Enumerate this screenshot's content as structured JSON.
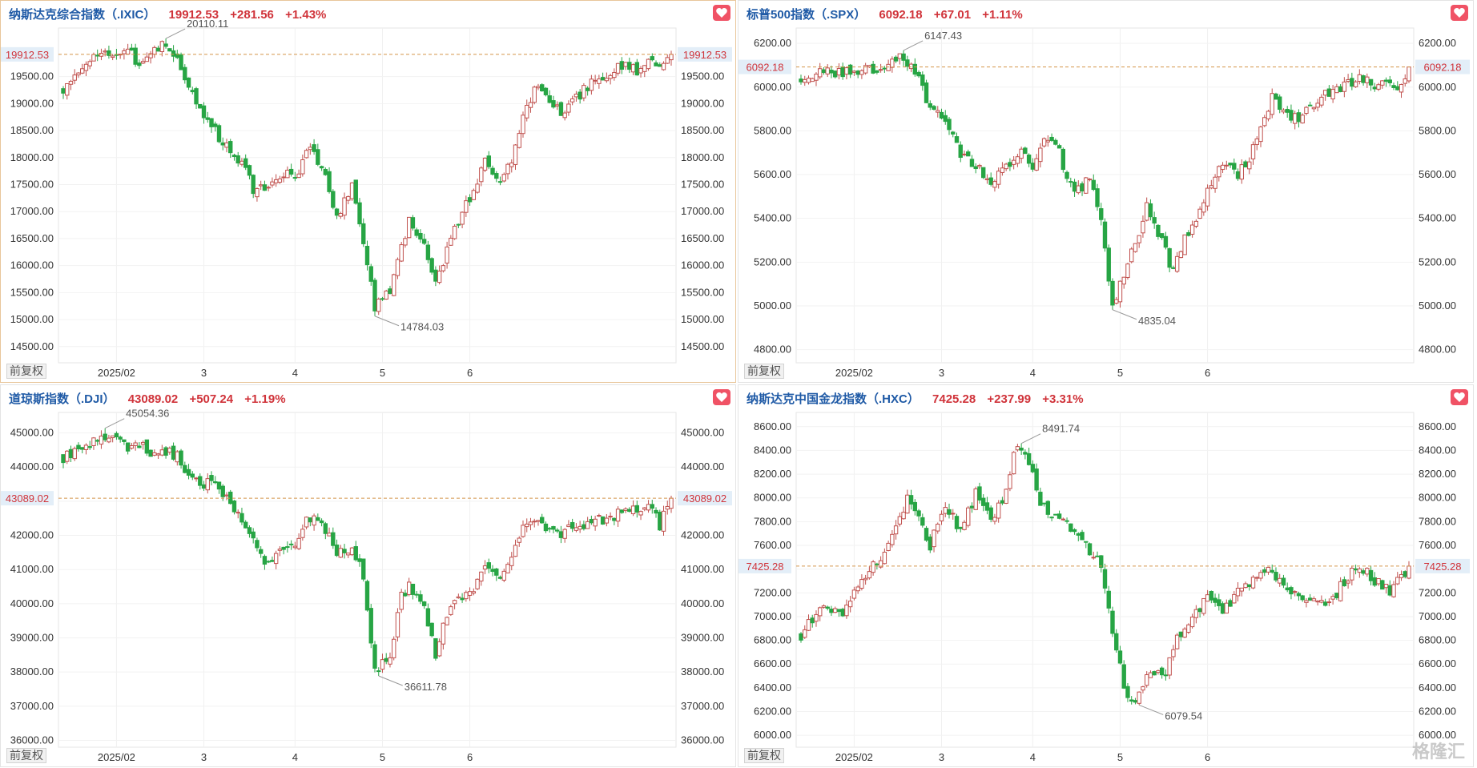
{
  "chart_data": [
    {
      "type": "candlestick",
      "id": "p0",
      "name": "纳斯达克综合指数（.IXIC）",
      "price": "19912.53",
      "change": "+281.56",
      "pct": "+1.43%",
      "current": 19912.53,
      "ylim": [
        14200,
        20400
      ],
      "ticks": [
        14500,
        15000,
        15500,
        16000,
        16500,
        17000,
        17500,
        18000,
        18500,
        19000,
        19500
      ],
      "high_label": "20110.11",
      "low_label": "14784.03",
      "waypoints": [
        [
          0,
          19300
        ],
        [
          6,
          19800
        ],
        [
          13,
          19900
        ],
        [
          17,
          20000
        ],
        [
          20,
          19700
        ],
        [
          23,
          20000
        ],
        [
          26,
          20110
        ],
        [
          30,
          19900
        ],
        [
          33,
          19300
        ],
        [
          38,
          18700
        ],
        [
          42,
          18300
        ],
        [
          47,
          17900
        ],
        [
          50,
          17400
        ],
        [
          53,
          17500
        ],
        [
          58,
          17700
        ],
        [
          61,
          17600
        ],
        [
          64,
          18200
        ],
        [
          68,
          17900
        ],
        [
          72,
          16900
        ],
        [
          76,
          17500
        ],
        [
          79,
          16400
        ],
        [
          82,
          15200
        ],
        [
          86,
          15500
        ],
        [
          89,
          16300
        ],
        [
          91,
          16800
        ],
        [
          95,
          16400
        ],
        [
          98,
          15700
        ],
        [
          101,
          16300
        ],
        [
          105,
          17000
        ],
        [
          108,
          17300
        ],
        [
          111,
          17900
        ],
        [
          115,
          17600
        ],
        [
          118,
          17900
        ],
        [
          121,
          18700
        ],
        [
          124,
          19300
        ],
        [
          127,
          19100
        ],
        [
          131,
          18800
        ],
        [
          135,
          19100
        ],
        [
          139,
          19400
        ],
        [
          143,
          19500
        ],
        [
          147,
          19700
        ],
        [
          151,
          19600
        ],
        [
          154,
          19800
        ],
        [
          157,
          19700
        ],
        [
          160,
          19912
        ]
      ]
    },
    {
      "type": "candlestick",
      "id": "p1",
      "name": "标普500指数（.SPX）",
      "price": "6092.18",
      "change": "+67.01",
      "pct": "+1.11%",
      "current": 6092.18,
      "ylim": [
        4740,
        6270
      ],
      "ticks": [
        4800,
        5000,
        5200,
        5400,
        5600,
        5800,
        6000,
        6200
      ],
      "high_label": "6147.43",
      "low_label": "4835.04",
      "waypoints": [
        [
          0,
          6050
        ],
        [
          6,
          6080
        ],
        [
          13,
          6060
        ],
        [
          17,
          6100
        ],
        [
          20,
          6050
        ],
        [
          23,
          6120
        ],
        [
          26,
          6147
        ],
        [
          30,
          6080
        ],
        [
          33,
          5950
        ],
        [
          38,
          5830
        ],
        [
          42,
          5700
        ],
        [
          47,
          5620
        ],
        [
          50,
          5580
        ],
        [
          53,
          5620
        ],
        [
          58,
          5690
        ],
        [
          61,
          5650
        ],
        [
          64,
          5770
        ],
        [
          68,
          5700
        ],
        [
          72,
          5500
        ],
        [
          76,
          5600
        ],
        [
          79,
          5400
        ],
        [
          82,
          5000
        ],
        [
          86,
          5200
        ],
        [
          89,
          5300
        ],
        [
          91,
          5450
        ],
        [
          95,
          5300
        ],
        [
          98,
          5150
        ],
        [
          101,
          5300
        ],
        [
          105,
          5450
        ],
        [
          108,
          5550
        ],
        [
          111,
          5650
        ],
        [
          115,
          5600
        ],
        [
          118,
          5680
        ],
        [
          121,
          5800
        ],
        [
          124,
          5950
        ],
        [
          127,
          5900
        ],
        [
          131,
          5850
        ],
        [
          135,
          5930
        ],
        [
          139,
          5980
        ],
        [
          143,
          6000
        ],
        [
          147,
          6040
        ],
        [
          151,
          6010
        ],
        [
          154,
          6050
        ],
        [
          157,
          6000
        ],
        [
          160,
          6092
        ]
      ]
    },
    {
      "type": "candlestick",
      "id": "p2",
      "name": "道琼斯指数（.DJI）",
      "price": "43089.02",
      "change": "+507.24",
      "pct": "+1.19%",
      "current": 43089.02,
      "ylim": [
        35800,
        45600
      ],
      "ticks": [
        36000,
        37000,
        38000,
        39000,
        40000,
        41000,
        42000,
        43000,
        44000,
        45000
      ],
      "high_label": "45054.36",
      "low_label": "36611.78",
      "waypoints": [
        [
          0,
          44300
        ],
        [
          6,
          44700
        ],
        [
          13,
          44900
        ],
        [
          17,
          44500
        ],
        [
          20,
          44700
        ],
        [
          23,
          44400
        ],
        [
          26,
          44500
        ],
        [
          30,
          44300
        ],
        [
          33,
          43700
        ],
        [
          38,
          43500
        ],
        [
          42,
          43300
        ],
        [
          47,
          42500
        ],
        [
          50,
          41800
        ],
        [
          53,
          41200
        ],
        [
          58,
          41500
        ],
        [
          61,
          41700
        ],
        [
          64,
          42500
        ],
        [
          68,
          42300
        ],
        [
          72,
          41500
        ],
        [
          76,
          41600
        ],
        [
          79,
          40800
        ],
        [
          82,
          38000
        ],
        [
          86,
          38500
        ],
        [
          89,
          40200
        ],
        [
          91,
          40500
        ],
        [
          95,
          39800
        ],
        [
          98,
          38500
        ],
        [
          101,
          39700
        ],
        [
          105,
          40200
        ],
        [
          108,
          40500
        ],
        [
          111,
          41000
        ],
        [
          115,
          40900
        ],
        [
          118,
          41300
        ],
        [
          121,
          42200
        ],
        [
          124,
          42500
        ],
        [
          127,
          42300
        ],
        [
          131,
          42000
        ],
        [
          135,
          42300
        ],
        [
          139,
          42400
        ],
        [
          143,
          42500
        ],
        [
          147,
          42700
        ],
        [
          151,
          42800
        ],
        [
          154,
          42900
        ],
        [
          157,
          42300
        ],
        [
          160,
          43089
        ]
      ]
    },
    {
      "type": "candlestick",
      "id": "p3",
      "name": "纳斯达克中国金龙指数（.HXC）",
      "price": "7425.28",
      "change": "+237.99",
      "pct": "+3.31%",
      "current": 7425.28,
      "ylim": [
        5900,
        8720
      ],
      "ticks": [
        6000,
        6200,
        6400,
        6600,
        6800,
        7000,
        7200,
        7400,
        7600,
        7800,
        8000,
        8200,
        8400,
        8600
      ],
      "high_label": "8491.74",
      "low_label": "6079.54",
      "waypoints": [
        [
          0,
          6850
        ],
        [
          6,
          7100
        ],
        [
          11,
          7000
        ],
        [
          16,
          7300
        ],
        [
          20,
          7450
        ],
        [
          24,
          7700
        ],
        [
          28,
          8000
        ],
        [
          31,
          7800
        ],
        [
          34,
          7600
        ],
        [
          38,
          7950
        ],
        [
          42,
          7700
        ],
        [
          46,
          8050
        ],
        [
          50,
          7800
        ],
        [
          53,
          8000
        ],
        [
          57,
          8450
        ],
        [
          60,
          8300
        ],
        [
          63,
          7950
        ],
        [
          67,
          7850
        ],
        [
          71,
          7750
        ],
        [
          75,
          7600
        ],
        [
          79,
          7450
        ],
        [
          82,
          6900
        ],
        [
          85,
          6400
        ],
        [
          88,
          6250
        ],
        [
          92,
          6550
        ],
        [
          96,
          6550
        ],
        [
          99,
          6800
        ],
        [
          103,
          7000
        ],
        [
          107,
          7150
        ],
        [
          111,
          7050
        ],
        [
          115,
          7200
        ],
        [
          119,
          7300
        ],
        [
          123,
          7400
        ],
        [
          127,
          7250
        ],
        [
          131,
          7200
        ],
        [
          135,
          7150
        ],
        [
          139,
          7100
        ],
        [
          143,
          7300
        ],
        [
          147,
          7450
        ],
        [
          151,
          7300
        ],
        [
          155,
          7200
        ],
        [
          160,
          7425
        ]
      ]
    }
  ],
  "ui": {
    "fq_label": "前复权",
    "x_labels": [
      "2025/02",
      "3",
      "4",
      "5",
      "6"
    ],
    "watermark": "格隆汇"
  },
  "colors": {
    "up": "#c0504d",
    "down": "#27a544",
    "title": "#1f5aa6",
    "price": "#d0333a",
    "ref_line": "#d4954a",
    "label_bg": "#e3eef8"
  }
}
